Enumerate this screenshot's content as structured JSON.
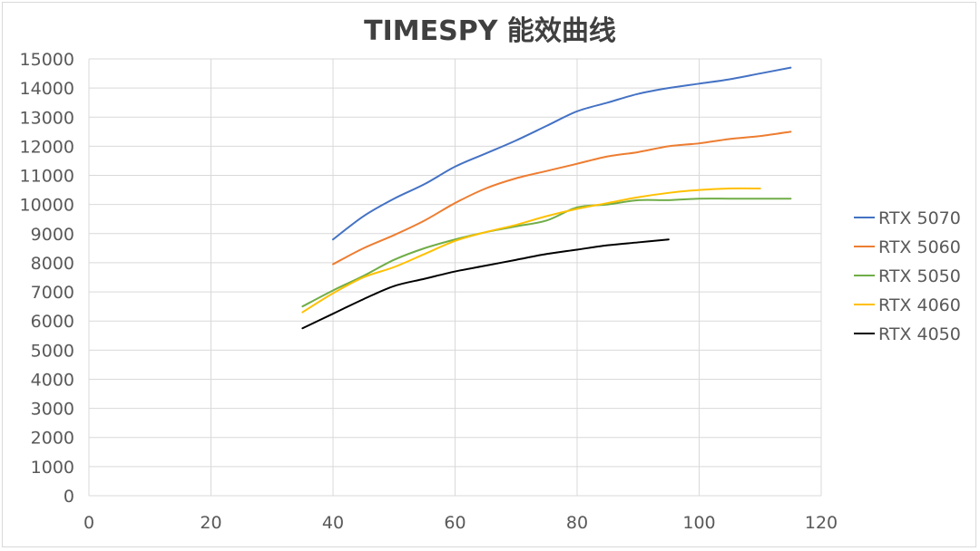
{
  "chart_data": {
    "type": "line",
    "title": "TIMESPY 能效曲线",
    "xlabel": "",
    "ylabel": "",
    "xlim": [
      0,
      120
    ],
    "ylim": [
      0,
      15000
    ],
    "x_ticks": [
      0,
      20,
      40,
      60,
      80,
      100,
      120
    ],
    "y_ticks": [
      0,
      1000,
      2000,
      3000,
      4000,
      5000,
      6000,
      7000,
      8000,
      9000,
      10000,
      11000,
      12000,
      13000,
      14000,
      15000
    ],
    "grid": true,
    "legend_position": "right",
    "series": [
      {
        "name": "RTX 5070",
        "color": "#4472c4",
        "points": [
          [
            40,
            8800
          ],
          [
            45,
            9600
          ],
          [
            50,
            10200
          ],
          [
            55,
            10700
          ],
          [
            60,
            11300
          ],
          [
            65,
            11750
          ],
          [
            70,
            12200
          ],
          [
            75,
            12700
          ],
          [
            80,
            13200
          ],
          [
            85,
            13500
          ],
          [
            90,
            13800
          ],
          [
            95,
            14000
          ],
          [
            100,
            14150
          ],
          [
            105,
            14300
          ],
          [
            110,
            14500
          ],
          [
            115,
            14700
          ]
        ]
      },
      {
        "name": "RTX 5060",
        "color": "#ed7d31",
        "points": [
          [
            40,
            7950
          ],
          [
            45,
            8500
          ],
          [
            50,
            8950
          ],
          [
            55,
            9450
          ],
          [
            60,
            10050
          ],
          [
            65,
            10550
          ],
          [
            70,
            10900
          ],
          [
            75,
            11150
          ],
          [
            80,
            11400
          ],
          [
            85,
            11650
          ],
          [
            90,
            11800
          ],
          [
            95,
            12000
          ],
          [
            100,
            12100
          ],
          [
            105,
            12250
          ],
          [
            110,
            12350
          ],
          [
            115,
            12500
          ]
        ]
      },
      {
        "name": "RTX 5050",
        "color": "#70ad47",
        "points": [
          [
            35,
            6500
          ],
          [
            40,
            7050
          ],
          [
            45,
            7550
          ],
          [
            50,
            8100
          ],
          [
            55,
            8500
          ],
          [
            60,
            8800
          ],
          [
            65,
            9050
          ],
          [
            70,
            9250
          ],
          [
            75,
            9450
          ],
          [
            80,
            9900
          ],
          [
            85,
            10000
          ],
          [
            90,
            10150
          ],
          [
            95,
            10150
          ],
          [
            100,
            10200
          ],
          [
            105,
            10200
          ],
          [
            110,
            10200
          ],
          [
            115,
            10200
          ]
        ]
      },
      {
        "name": "RTX 4060",
        "color": "#ffc000",
        "points": [
          [
            35,
            6300
          ],
          [
            40,
            6950
          ],
          [
            45,
            7500
          ],
          [
            50,
            7850
          ],
          [
            55,
            8300
          ],
          [
            60,
            8750
          ],
          [
            65,
            9050
          ],
          [
            70,
            9300
          ],
          [
            75,
            9600
          ],
          [
            80,
            9850
          ],
          [
            85,
            10050
          ],
          [
            90,
            10250
          ],
          [
            95,
            10400
          ],
          [
            100,
            10500
          ],
          [
            105,
            10550
          ],
          [
            110,
            10550
          ]
        ]
      },
      {
        "name": "RTX 4050",
        "color": "#000000",
        "points": [
          [
            35,
            5750
          ],
          [
            40,
            6250
          ],
          [
            45,
            6750
          ],
          [
            50,
            7200
          ],
          [
            55,
            7450
          ],
          [
            60,
            7700
          ],
          [
            65,
            7900
          ],
          [
            70,
            8100
          ],
          [
            75,
            8300
          ],
          [
            80,
            8450
          ],
          [
            85,
            8600
          ],
          [
            90,
            8700
          ],
          [
            95,
            8800
          ]
        ]
      }
    ]
  }
}
